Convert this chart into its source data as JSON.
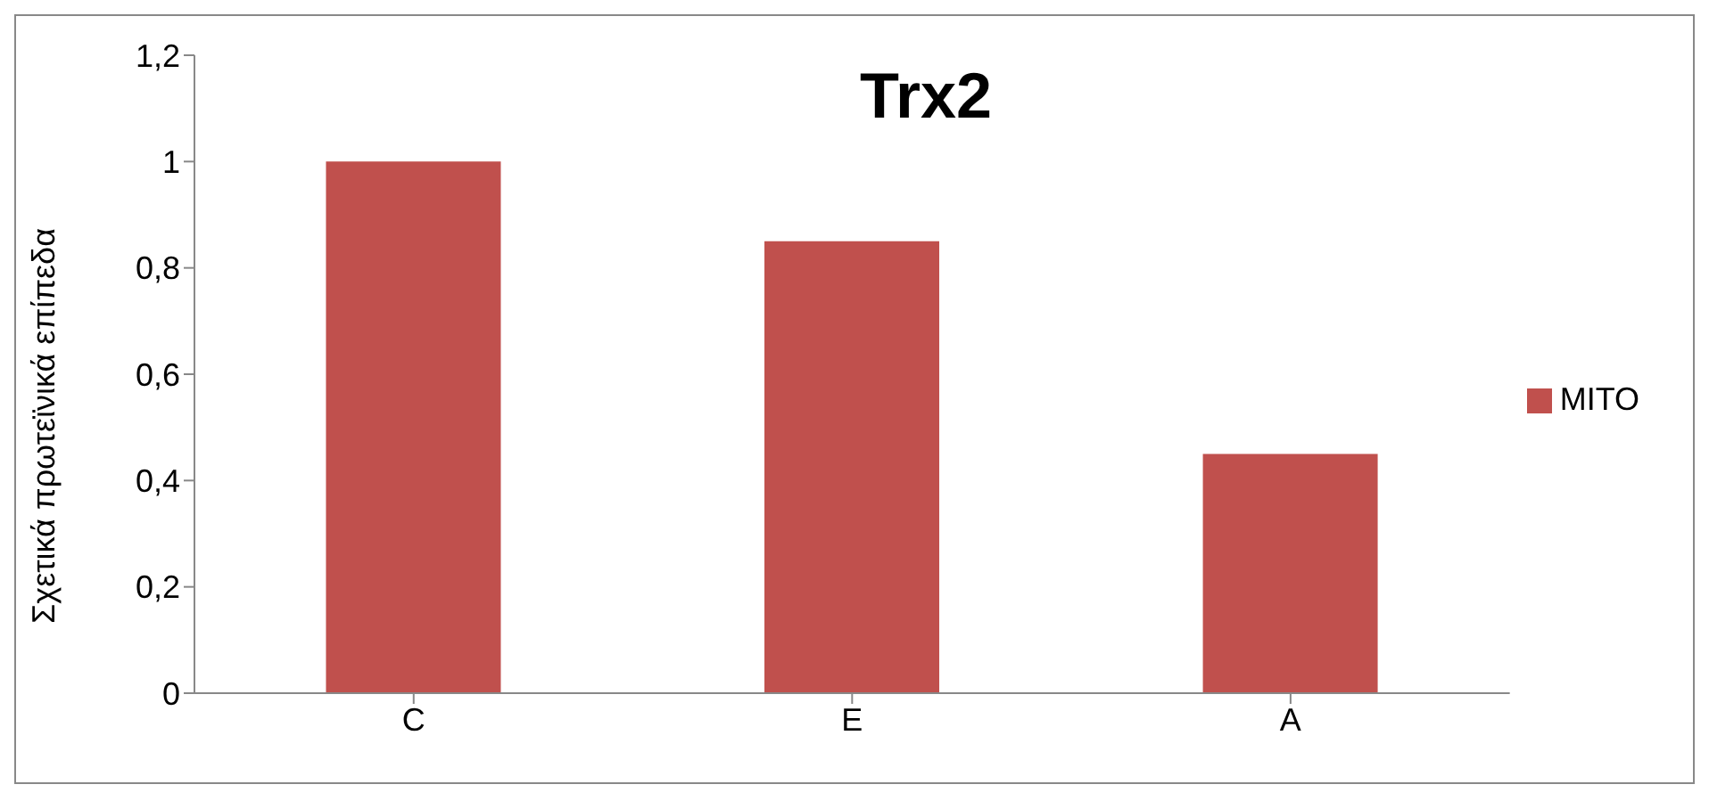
{
  "chart_data": {
    "type": "bar",
    "title": "Trx2",
    "ylabel": "Σχετικά πρωτεϊνικά επίπεδα",
    "categories": [
      "C",
      "E",
      "A"
    ],
    "series": [
      {
        "name": "MITO",
        "color": "#c0504d",
        "values": [
          1,
          0.85,
          0.45
        ]
      }
    ],
    "ylim": [
      0,
      1.2
    ],
    "yticks": [
      0,
      {
        "value": 0.2,
        "label": "0,2"
      },
      {
        "value": 0.4,
        "label": "0,4"
      },
      {
        "value": 0.6,
        "label": "0,6"
      },
      {
        "value": 0.8,
        "label": "0,8"
      },
      1,
      {
        "value": 1.2,
        "label": "1,2"
      }
    ],
    "grid": false,
    "legend": "right"
  }
}
